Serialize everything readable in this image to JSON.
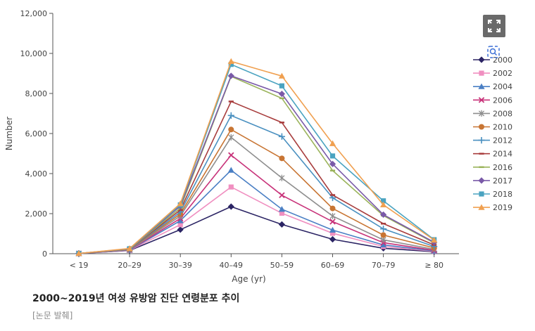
{
  "chart_data": {
    "type": "line",
    "xlabel": "Age (yr)",
    "ylabel": "Number",
    "ylim": [
      0,
      12000
    ],
    "yticks": [
      "0",
      "2,000",
      "4,000",
      "6,000",
      "8,000",
      "10,000",
      "12,000"
    ],
    "categories": [
      "< 19",
      "20–29",
      "30–39",
      "40–49",
      "50–59",
      "60–69",
      "70–79",
      "≥ 80"
    ],
    "legend_position": "right",
    "grid": false,
    "series": [
      {
        "name": "2000",
        "color": "#2b2464",
        "marker": "diamond",
        "values": [
          10,
          160,
          1200,
          2350,
          1460,
          720,
          270,
          100
        ]
      },
      {
        "name": "2002",
        "color": "#f08fc0",
        "marker": "square",
        "values": [
          10,
          170,
          1450,
          3330,
          2020,
          1020,
          360,
          120
        ]
      },
      {
        "name": "2004",
        "color": "#4a7fc4",
        "marker": "triangle",
        "values": [
          12,
          180,
          1650,
          4170,
          2220,
          1180,
          440,
          140
        ]
      },
      {
        "name": "2006",
        "color": "#c8337a",
        "marker": "x",
        "values": [
          12,
          190,
          1760,
          4920,
          2920,
          1600,
          550,
          170
        ]
      },
      {
        "name": "2008",
        "color": "#8e8e8e",
        "marker": "star",
        "values": [
          12,
          200,
          1880,
          5810,
          3780,
          1880,
          690,
          220
        ]
      },
      {
        "name": "2010",
        "color": "#c87533",
        "marker": "circle",
        "values": [
          12,
          210,
          1980,
          6200,
          4760,
          2260,
          930,
          290
        ]
      },
      {
        "name": "2012",
        "color": "#4a90c0",
        "marker": "plus",
        "values": [
          12,
          215,
          2080,
          6900,
          5850,
          2790,
          1240,
          360
        ]
      },
      {
        "name": "2014",
        "color": "#a83d3d",
        "marker": "dash",
        "values": [
          12,
          225,
          2180,
          7600,
          6550,
          2930,
          1500,
          440
        ]
      },
      {
        "name": "2016",
        "color": "#9ab35a",
        "marker": "dash",
        "values": [
          12,
          230,
          2280,
          8850,
          7760,
          4150,
          1900,
          540
        ]
      },
      {
        "name": "2017",
        "color": "#7a5aa8",
        "marker": "diamond",
        "values": [
          12,
          240,
          2380,
          8880,
          7980,
          4480,
          1950,
          570
        ]
      },
      {
        "name": "2018",
        "color": "#4aa3c0",
        "marker": "square",
        "values": [
          12,
          250,
          2440,
          9450,
          8380,
          4880,
          2640,
          700
        ]
      },
      {
        "name": "2019",
        "color": "#f0a050",
        "marker": "triangle",
        "values": [
          12,
          260,
          2500,
          9600,
          8870,
          5500,
          2440,
          680
        ]
      }
    ]
  },
  "caption": {
    "title": "2000~2019년 여성 유방암 진단 연령분포 추이",
    "source": "[논문 발췌]"
  },
  "icons": {
    "expand": "expand-icon",
    "zoom": "zoom-icon"
  }
}
